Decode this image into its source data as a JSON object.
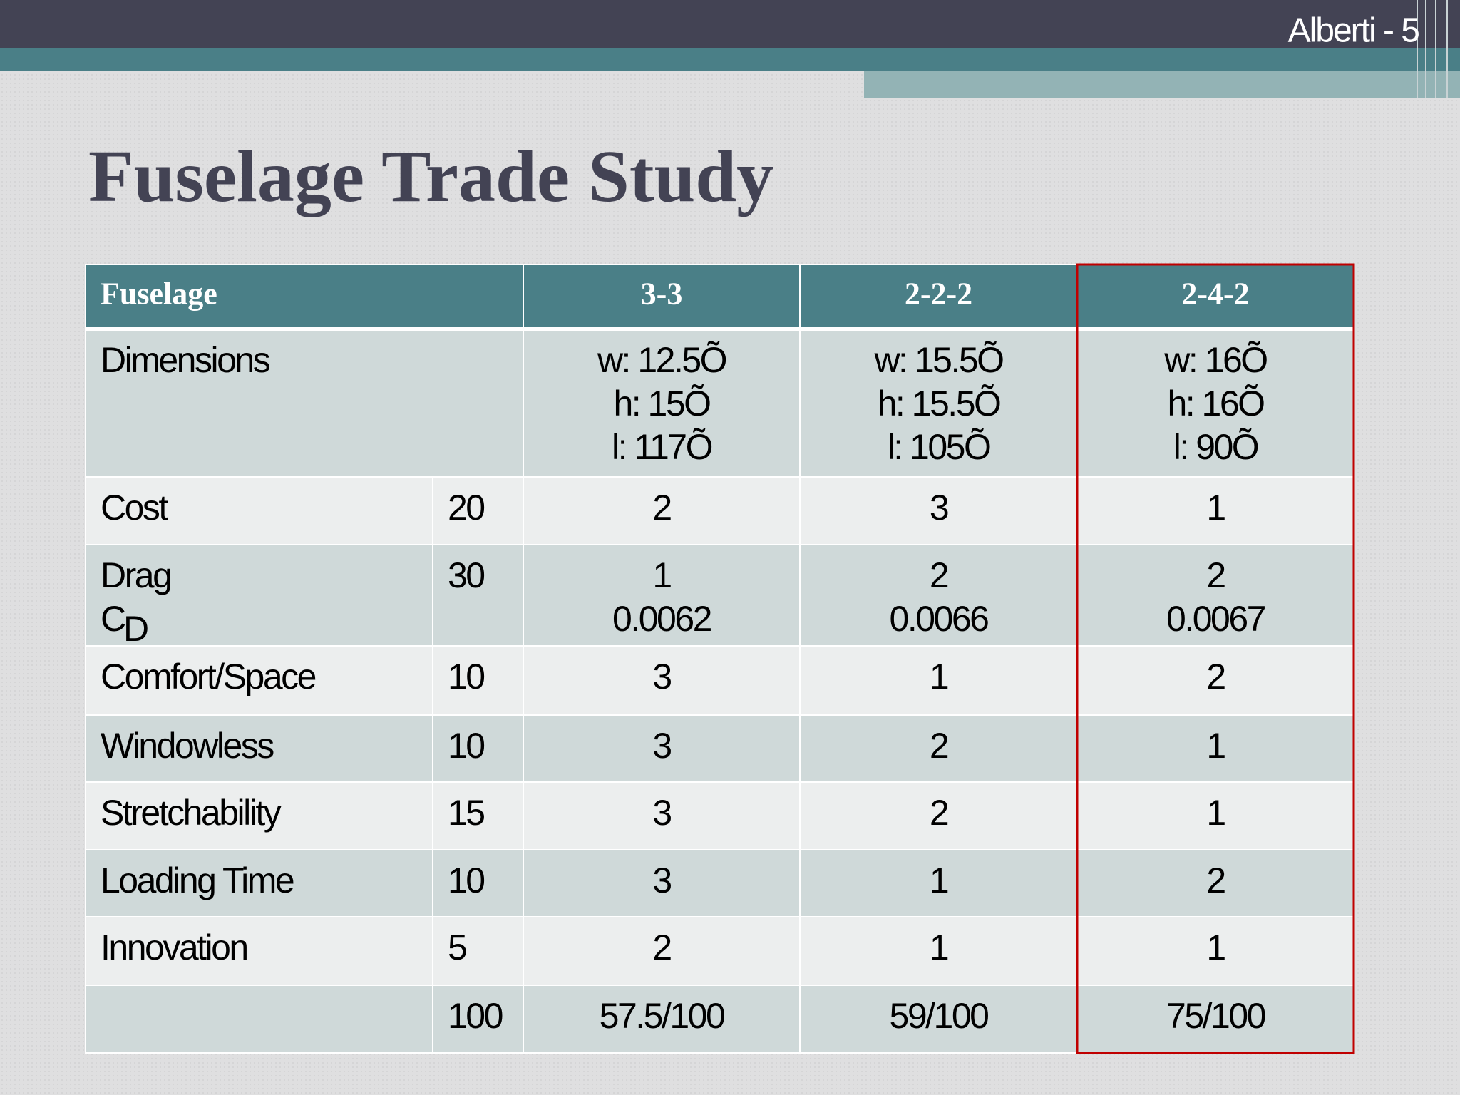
{
  "header": {
    "slide_label": "Alberti - 5"
  },
  "title": "Fuselage Trade Study",
  "table": {
    "columns": [
      "Fuselage",
      "3-3",
      "2-2-2",
      "2-4-2"
    ],
    "rows": [
      {
        "label": [
          "Dimensions"
        ],
        "cells": [
          [
            "w: 12.5Õ",
            "h: 15Õ",
            "l: 117Õ"
          ],
          [
            "w: 15.5Õ",
            "h: 15.5Õ",
            "l: 105Õ"
          ],
          [
            "w: 16Õ",
            "h: 16Õ",
            "l: 90Õ"
          ]
        ]
      },
      {
        "label": [
          "Cost"
        ],
        "weight": 20,
        "cells": [
          [
            2
          ],
          [
            3
          ],
          [
            1
          ]
        ]
      },
      {
        "label": [
          "Drag"
        ],
        "symbol": "C",
        "symbol_subscript": "D",
        "weight": 30,
        "cells": [
          [
            1,
            0.0062
          ],
          [
            2,
            0.0066
          ],
          [
            2,
            0.0067
          ]
        ]
      },
      {
        "label": [
          "Comfort/Space"
        ],
        "weight": 10,
        "cells": [
          [
            3
          ],
          [
            1
          ],
          [
            2
          ]
        ]
      },
      {
        "label": [
          "Windowless"
        ],
        "weight": 10,
        "cells": [
          [
            3
          ],
          [
            2
          ],
          [
            1
          ]
        ]
      },
      {
        "label": [
          "Stretchability"
        ],
        "weight": 15,
        "cells": [
          [
            3
          ],
          [
            2
          ],
          [
            1
          ]
        ]
      },
      {
        "label": [
          "Loading Time"
        ],
        "weight": 10,
        "cells": [
          [
            3
          ],
          [
            1
          ],
          [
            2
          ]
        ]
      },
      {
        "label": [
          "Innovation"
        ],
        "weight": 5,
        "cells": [
          [
            2
          ],
          [
            1
          ],
          [
            1
          ]
        ]
      },
      {
        "weight": 100,
        "cells": [
          [
            "57.5/100"
          ],
          [
            "59/100"
          ],
          [
            "75/100"
          ]
        ]
      }
    ]
  }
}
